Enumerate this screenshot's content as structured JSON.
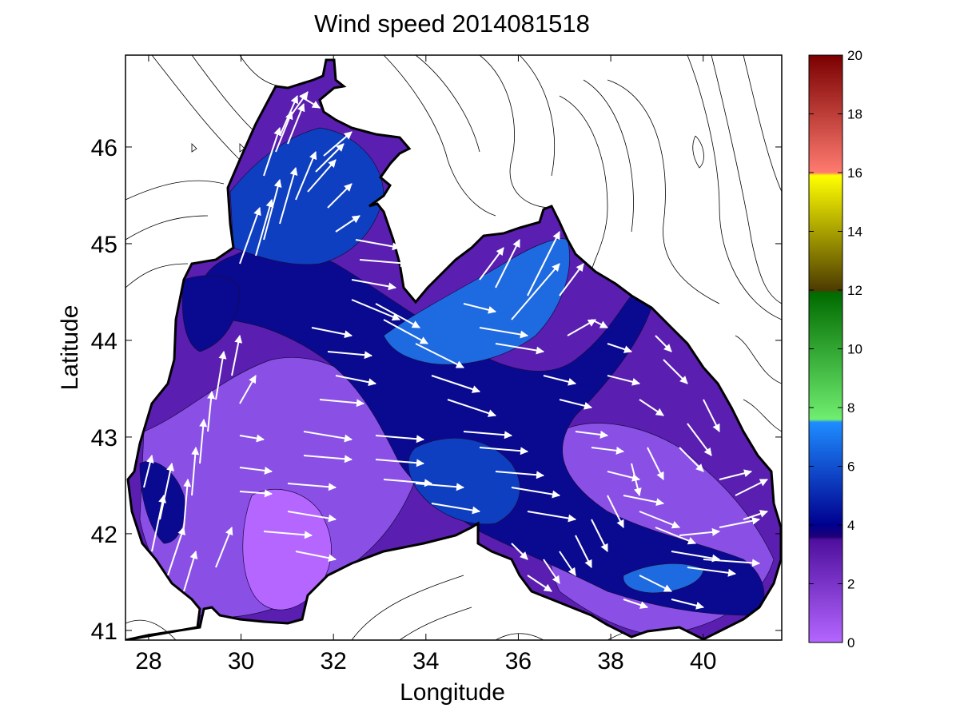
{
  "figure": {
    "title": "Wind speed 2014081518"
  },
  "map_data": {
    "type": "contour-vector-map",
    "xlabel": "Longitude",
    "ylabel": "Latitude",
    "xlim": [
      27.5,
      41.7
    ],
    "ylim": [
      40.9,
      46.95
    ],
    "xticks": [
      "28",
      "30",
      "32",
      "34",
      "36",
      "38",
      "40"
    ],
    "yticks": [
      "41",
      "42",
      "43",
      "44",
      "45",
      "46"
    ],
    "colorbar": {
      "range": [
        0,
        20
      ],
      "ticks": [
        "0",
        "2",
        "4",
        "6",
        "8",
        "10",
        "12",
        "14",
        "16",
        "18",
        "20"
      ],
      "bands": [
        {
          "from": 0,
          "to": 3.6,
          "c0": "#b466ff",
          "c1": "#4f0f9e"
        },
        {
          "from": 3.6,
          "to": 4.0,
          "c0": "#2a0a84",
          "c1": "#1e0077"
        },
        {
          "from": 4.0,
          "to": 7.6,
          "c0": "#00008f",
          "c1": "#1e8cff"
        },
        {
          "from": 7.6,
          "to": 12.0,
          "c0": "#70ee70",
          "c1": "#006b00"
        },
        {
          "from": 12.0,
          "to": 16.0,
          "c0": "#4d3c00",
          "c1": "#ffff00"
        },
        {
          "from": 16.0,
          "to": 20.0,
          "c0": "#ff7b70",
          "c1": "#7a0000"
        }
      ]
    },
    "wind_fill_colors": {
      "calm": "#b466ff",
      "light": "#8a50e6",
      "moderate": "#5a1fb0",
      "strong": "#0a0a90",
      "stronger": "#0e3fc0",
      "strongest": "#1e6ae0"
    }
  }
}
